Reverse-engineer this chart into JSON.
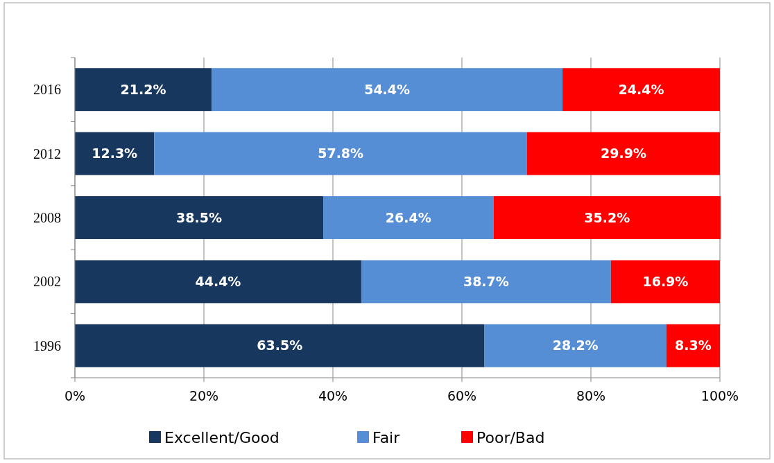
{
  "chart_data": {
    "type": "bar",
    "orientation": "horizontal",
    "stacked": true,
    "categories": [
      "2016",
      "2012",
      "2008",
      "2002",
      "1996"
    ],
    "series": [
      {
        "name": "Excellent/Good",
        "color": "#17375e",
        "values": [
          21.2,
          12.3,
          38.5,
          44.4,
          63.5
        ]
      },
      {
        "name": "Fair",
        "color": "#558ed5",
        "values": [
          54.4,
          57.8,
          26.4,
          38.7,
          28.2
        ]
      },
      {
        "name": "Poor/Bad",
        "color": "#ff0000",
        "values": [
          24.4,
          29.9,
          35.2,
          16.9,
          8.3
        ]
      }
    ],
    "xlim": [
      0,
      100
    ],
    "xticks": [
      {
        "value": 0,
        "label": "0%"
      },
      {
        "value": 20,
        "label": "20%"
      },
      {
        "value": 40,
        "label": "40%"
      },
      {
        "value": 60,
        "label": "60%"
      },
      {
        "value": 80,
        "label": "80%"
      },
      {
        "value": 100,
        "label": "100%"
      }
    ],
    "value_labels": [
      [
        "21.2%",
        "12.3%",
        "38.5%",
        "44.4%",
        "63.5%"
      ],
      [
        "54.4%",
        "57.8%",
        "26.4%",
        "38.7%",
        "28.2%"
      ],
      [
        "24.4%",
        "29.9%",
        "35.2%",
        "16.9%",
        "8.3%"
      ]
    ],
    "grid": "x",
    "legend": "bottom"
  }
}
